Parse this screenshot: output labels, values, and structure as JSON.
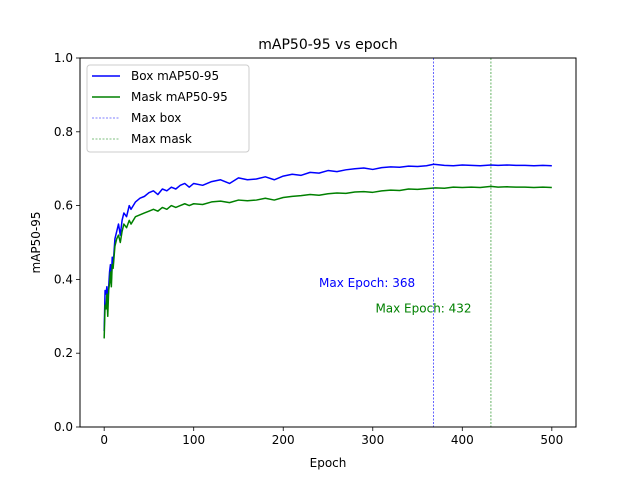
{
  "chart_data": {
    "type": "line",
    "title": "mAP50-95 vs epoch",
    "xlabel": "Epoch",
    "ylabel": "mAP50-95",
    "xlim": [
      -27,
      527
    ],
    "ylim": [
      0.0,
      1.0
    ],
    "xticks": [
      0,
      100,
      200,
      300,
      400,
      500
    ],
    "yticks": [
      0.0,
      0.2,
      0.4,
      0.6,
      0.8,
      1.0
    ],
    "xtick_labels": [
      "0",
      "100",
      "200",
      "300",
      "400",
      "500"
    ],
    "ytick_labels": [
      "0.0",
      "0.2",
      "0.4",
      "0.6",
      "0.8",
      "1.0"
    ],
    "grid": false,
    "legend_position": "top-left",
    "series": [
      {
        "name": "Box mAP50-95",
        "color": "#0000ff",
        "style": "solid",
        "x": [
          0,
          1,
          2,
          3,
          4,
          5,
          6,
          7,
          8,
          9,
          10,
          12,
          14,
          16,
          18,
          20,
          22,
          25,
          28,
          30,
          35,
          40,
          45,
          50,
          55,
          60,
          65,
          70,
          75,
          80,
          85,
          90,
          95,
          100,
          110,
          120,
          130,
          140,
          150,
          160,
          170,
          180,
          190,
          200,
          210,
          220,
          230,
          240,
          250,
          260,
          270,
          280,
          290,
          300,
          310,
          320,
          330,
          340,
          350,
          360,
          368,
          380,
          390,
          400,
          410,
          420,
          432,
          440,
          450,
          460,
          470,
          480,
          490,
          500
        ],
        "y": [
          0.26,
          0.37,
          0.36,
          0.38,
          0.33,
          0.38,
          0.42,
          0.44,
          0.4,
          0.46,
          0.44,
          0.51,
          0.53,
          0.55,
          0.52,
          0.56,
          0.58,
          0.57,
          0.6,
          0.59,
          0.61,
          0.62,
          0.625,
          0.635,
          0.64,
          0.63,
          0.645,
          0.64,
          0.65,
          0.645,
          0.655,
          0.66,
          0.65,
          0.66,
          0.655,
          0.665,
          0.67,
          0.66,
          0.675,
          0.67,
          0.672,
          0.678,
          0.67,
          0.68,
          0.685,
          0.682,
          0.69,
          0.688,
          0.695,
          0.692,
          0.697,
          0.7,
          0.702,
          0.698,
          0.703,
          0.705,
          0.704,
          0.707,
          0.706,
          0.708,
          0.712,
          0.709,
          0.708,
          0.71,
          0.709,
          0.708,
          0.71,
          0.709,
          0.71,
          0.709,
          0.709,
          0.708,
          0.709,
          0.708
        ]
      },
      {
        "name": "Mask mAP50-95",
        "color": "#008000",
        "style": "solid",
        "x": [
          0,
          1,
          2,
          3,
          4,
          5,
          6,
          7,
          8,
          9,
          10,
          12,
          14,
          16,
          18,
          20,
          22,
          25,
          28,
          30,
          35,
          40,
          45,
          50,
          55,
          60,
          65,
          70,
          75,
          80,
          85,
          90,
          95,
          100,
          110,
          120,
          130,
          140,
          150,
          160,
          170,
          180,
          190,
          200,
          210,
          220,
          230,
          240,
          250,
          260,
          270,
          280,
          290,
          300,
          310,
          320,
          330,
          340,
          350,
          360,
          370,
          380,
          390,
          400,
          410,
          420,
          432,
          440,
          450,
          460,
          470,
          480,
          490,
          500
        ],
        "y": [
          0.24,
          0.33,
          0.32,
          0.36,
          0.3,
          0.37,
          0.39,
          0.42,
          0.38,
          0.44,
          0.43,
          0.49,
          0.51,
          0.52,
          0.5,
          0.53,
          0.55,
          0.54,
          0.56,
          0.55,
          0.57,
          0.575,
          0.58,
          0.585,
          0.59,
          0.585,
          0.595,
          0.59,
          0.6,
          0.595,
          0.6,
          0.605,
          0.6,
          0.605,
          0.603,
          0.61,
          0.612,
          0.608,
          0.615,
          0.613,
          0.615,
          0.62,
          0.615,
          0.622,
          0.625,
          0.627,
          0.63,
          0.628,
          0.632,
          0.634,
          0.633,
          0.637,
          0.638,
          0.636,
          0.64,
          0.642,
          0.641,
          0.645,
          0.644,
          0.646,
          0.648,
          0.647,
          0.65,
          0.649,
          0.65,
          0.649,
          0.652,
          0.65,
          0.651,
          0.65,
          0.65,
          0.649,
          0.65,
          0.649
        ]
      }
    ],
    "vlines": [
      {
        "name": "Max box",
        "x": 368,
        "color": "#0000ff",
        "style": "dashed"
      },
      {
        "name": "Max mask",
        "x": 432,
        "color": "#008000",
        "style": "dashed"
      }
    ],
    "annotations": [
      {
        "text": "Max Epoch: 368",
        "x": 240,
        "y": 0.38,
        "color": "#0000ff"
      },
      {
        "text": "Max Epoch: 432",
        "x": 303,
        "y": 0.31,
        "color": "#008000"
      }
    ]
  }
}
